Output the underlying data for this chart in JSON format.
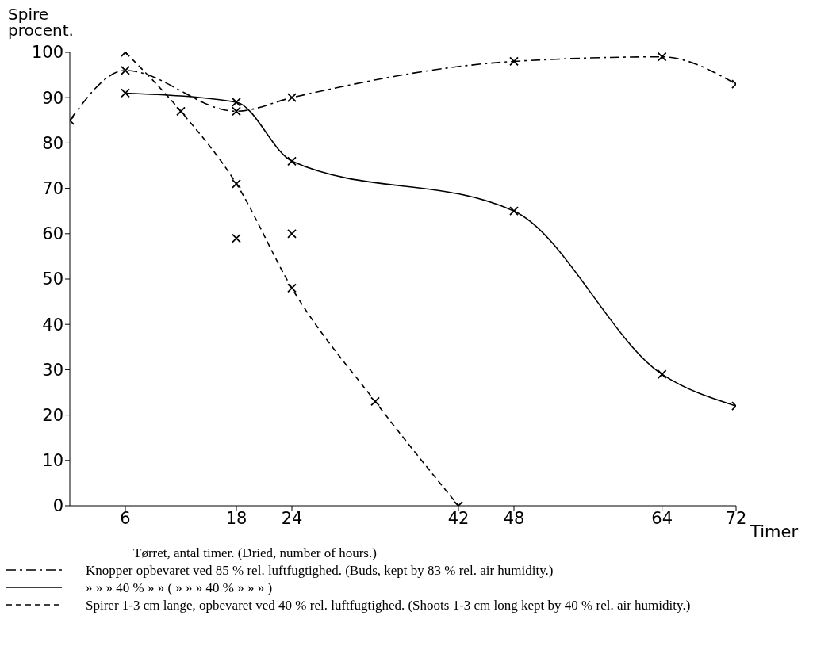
{
  "chart_data": {
    "type": "line",
    "ylabel": "Spire procent.",
    "xlabel": "Timer",
    "annotations": [
      "Tørret, antal timer. (Dried, number of hours.)"
    ],
    "xlim": [
      0,
      72
    ],
    "xticks": [
      6,
      18,
      24,
      42,
      48,
      64,
      72
    ],
    "ylim": [
      0,
      100
    ],
    "yticks": [
      0,
      10,
      20,
      30,
      40,
      50,
      60,
      70,
      80,
      90,
      100
    ],
    "grid": false,
    "legend": "bottom",
    "marker": "cross",
    "series": [
      {
        "name": "Knopper opbevaret ved 85 % rel. luftfugtighed. (Buds, kept by 83 % rel. air humidity.)",
        "color": "#000000",
        "line_style": "dashdot",
        "x": [
          0,
          6,
          18,
          24,
          48,
          64,
          72
        ],
        "values": [
          85,
          96,
          87,
          90,
          98,
          99,
          93
        ]
      },
      {
        "name": "» » » 40 % » » ( » » » 40 % » » » )",
        "color": "#000000",
        "line_style": "solid",
        "x": [
          6,
          18,
          24,
          48,
          64,
          72
        ],
        "values": [
          91,
          89,
          76,
          65,
          29,
          22
        ]
      },
      {
        "name": "Spirer 1-3 cm lange, opbevaret ved 40 % rel. luftfugtighed. (Shoots 1-3 cm long kept by 40 % rel. air humidity.)",
        "color": "#000000",
        "line_style": "dashed",
        "x": [
          6,
          12,
          18,
          24,
          33,
          42
        ],
        "values": [
          100,
          87,
          71,
          48,
          23,
          0
        ]
      },
      {
        "type": "scatter",
        "color": "#000000",
        "x": [
          18,
          24
        ],
        "values": [
          59,
          60
        ]
      }
    ]
  }
}
